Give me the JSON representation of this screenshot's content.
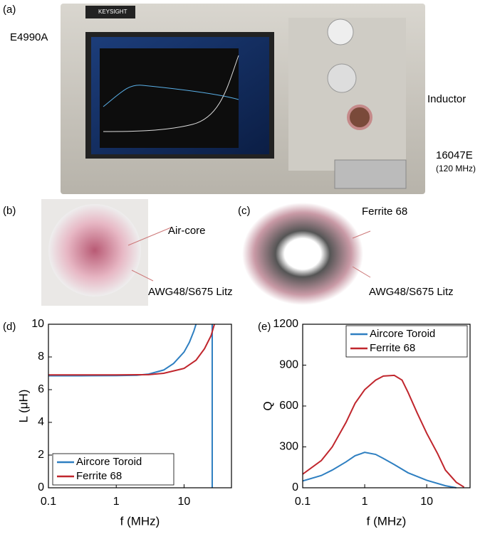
{
  "panels": {
    "a": {
      "label": "(a)",
      "brand": "KEYSIGHT",
      "instrument": "E4990A",
      "inductor": "Inductor",
      "fixture": "16047E",
      "fixture_freq": "(120 MHz)"
    },
    "b": {
      "label": "(b)",
      "core": "Air-core",
      "wire": "AWG48/S675 Litz"
    },
    "c": {
      "label": "(c)",
      "core": "Ferrite 68",
      "wire": "AWG48/S675 Litz"
    }
  },
  "chart_data": [
    {
      "type": "line",
      "panel": "(d)",
      "x_label": "f (MHz)",
      "y_label": "L (μH)",
      "xscale": "log",
      "xlim": [
        0.1,
        50
      ],
      "xticks": [
        0.1,
        1,
        10
      ],
      "ylim": [
        0,
        10
      ],
      "yticks": [
        0,
        2,
        4,
        6,
        8,
        10
      ],
      "legend": "lower left",
      "series": [
        {
          "name": "Aircore Toroid",
          "color": "#2e7fc1",
          "x": [
            0.1,
            0.3,
            1,
            2,
            3,
            5,
            7,
            10,
            12,
            14,
            15,
            null,
            26,
            26
          ],
          "values": [
            6.85,
            6.85,
            6.86,
            6.88,
            6.95,
            7.2,
            7.6,
            8.3,
            8.9,
            9.6,
            10,
            null,
            10,
            0
          ]
        },
        {
          "name": "Ferrite 68",
          "color": "#c0262d",
          "x": [
            0.1,
            1,
            3,
            5,
            10,
            15,
            20,
            25,
            28
          ],
          "values": [
            6.9,
            6.9,
            6.92,
            7.0,
            7.3,
            7.8,
            8.5,
            9.3,
            10
          ]
        }
      ]
    },
    {
      "type": "line",
      "panel": "(e)",
      "x_label": "f (MHz)",
      "y_label": "Q",
      "xscale": "log",
      "xlim": [
        0.1,
        50
      ],
      "xticks": [
        0.1,
        1,
        10
      ],
      "ylim": [
        0,
        1200
      ],
      "yticks": [
        0,
        300,
        600,
        900,
        1200
      ],
      "legend": "upper right",
      "series": [
        {
          "name": "Aircore Toroid",
          "color": "#2e7fc1",
          "x": [
            0.1,
            0.2,
            0.3,
            0.5,
            0.7,
            1,
            1.5,
            2,
            3,
            5,
            10,
            20,
            30
          ],
          "values": [
            50,
            90,
            130,
            190,
            235,
            260,
            245,
            215,
            170,
            110,
            55,
            15,
            0
          ]
        },
        {
          "name": "Ferrite 68",
          "color": "#c0262d",
          "x": [
            0.1,
            0.2,
            0.3,
            0.5,
            0.7,
            1,
            1.5,
            2,
            3,
            4,
            5,
            7,
            10,
            15,
            20,
            30,
            40
          ],
          "values": [
            100,
            200,
            300,
            480,
            620,
            720,
            790,
            820,
            825,
            790,
            700,
            550,
            400,
            250,
            130,
            40,
            5
          ]
        }
      ]
    }
  ]
}
